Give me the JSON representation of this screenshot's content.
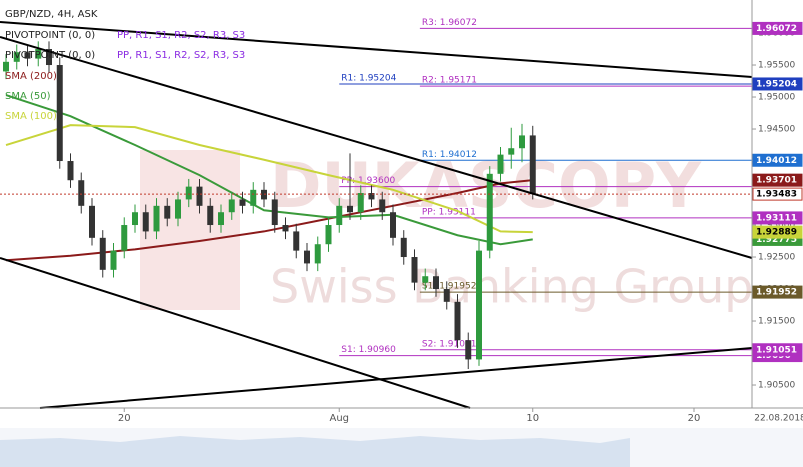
{
  "chart_data": {
    "type": "candlestick",
    "title": "GBP/NZD, 4H, ASK",
    "indicator_lines": [
      "PIVOTPOINT (0, 0)",
      "PIVOTPOINT (0, 0)"
    ],
    "indicator_items": [
      "PP, R1, S1, R2, S2, R3, S3",
      "PP, R1, S1, R2, S2, R3, S3"
    ],
    "watermark": [
      "DUKASCOPY",
      "Swiss Banking Group"
    ],
    "date_label": "22.08.2018",
    "up_color": "#2e9a3e",
    "down_color": "#333333",
    "ylim": [
      1.90141,
      1.96516
    ],
    "yticks": [
      {
        "value": 1.905,
        "label": "1.90500"
      },
      {
        "value": 1.91,
        "label": "1.91000"
      },
      {
        "value": 1.915,
        "label": "1.91500"
      },
      {
        "value": 1.92,
        "label": "1.92000"
      },
      {
        "value": 1.925,
        "label": "1.92500"
      },
      {
        "value": 1.93,
        "label": "1.93000"
      },
      {
        "value": 1.935,
        "label": "1.93500"
      },
      {
        "value": 1.94,
        "label": "1.94000"
      },
      {
        "value": 1.945,
        "label": "1.94500"
      },
      {
        "value": 1.95,
        "label": "1.95000"
      },
      {
        "value": 1.955,
        "label": "1.95500"
      },
      {
        "value": 1.96,
        "label": "1.96000"
      }
    ],
    "grid": false,
    "xlabels": [
      {
        "value": 11,
        "label": "20"
      },
      {
        "value": 31,
        "label": "Aug"
      },
      {
        "value": 49,
        "label": "10"
      },
      {
        "value": 64,
        "label": "20"
      }
    ],
    "candles": [
      [
        1.954,
        1.9567,
        1.9528,
        1.9555
      ],
      [
        1.9555,
        1.9582,
        1.9543,
        1.957
      ],
      [
        1.957,
        1.9582,
        1.9548,
        1.956
      ],
      [
        1.956,
        1.9587,
        1.9548,
        1.9575
      ],
      [
        1.9575,
        1.9587,
        1.9538,
        1.955
      ],
      [
        1.955,
        1.9562,
        1.9388,
        1.94
      ],
      [
        1.94,
        1.9412,
        1.9358,
        1.937
      ],
      [
        1.937,
        1.9382,
        1.9318,
        1.933
      ],
      [
        1.933,
        1.9342,
        1.9268,
        1.928
      ],
      [
        1.928,
        1.9292,
        1.9218,
        1.923
      ],
      [
        1.923,
        1.9272,
        1.9218,
        1.926
      ],
      [
        1.926,
        1.9312,
        1.9248,
        1.93
      ],
      [
        1.93,
        1.9332,
        1.9288,
        1.932
      ],
      [
        1.932,
        1.9332,
        1.9278,
        1.929
      ],
      [
        1.929,
        1.9342,
        1.9278,
        1.933
      ],
      [
        1.933,
        1.9342,
        1.9298,
        1.931
      ],
      [
        1.931,
        1.9352,
        1.9298,
        1.934
      ],
      [
        1.934,
        1.9372,
        1.9328,
        1.936
      ],
      [
        1.936,
        1.9372,
        1.9318,
        1.933
      ],
      [
        1.933,
        1.9342,
        1.9288,
        1.93
      ],
      [
        1.93,
        1.9332,
        1.9288,
        1.932
      ],
      [
        1.932,
        1.9352,
        1.9308,
        1.934
      ],
      [
        1.934,
        1.9352,
        1.9318,
        1.933
      ],
      [
        1.933,
        1.9367,
        1.9318,
        1.9355
      ],
      [
        1.9355,
        1.9367,
        1.9328,
        1.934
      ],
      [
        1.934,
        1.9352,
        1.9288,
        1.93
      ],
      [
        1.93,
        1.9312,
        1.9278,
        1.929
      ],
      [
        1.929,
        1.9302,
        1.9248,
        1.926
      ],
      [
        1.926,
        1.9272,
        1.9228,
        1.924
      ],
      [
        1.924,
        1.9282,
        1.9228,
        1.927
      ],
      [
        1.927,
        1.9312,
        1.9258,
        1.93
      ],
      [
        1.93,
        1.9342,
        1.9288,
        1.933
      ],
      [
        1.933,
        1.9412,
        1.9308,
        1.932
      ],
      [
        1.932,
        1.9362,
        1.9308,
        1.935
      ],
      [
        1.935,
        1.9362,
        1.9328,
        1.934
      ],
      [
        1.934,
        1.9352,
        1.9308,
        1.932
      ],
      [
        1.932,
        1.9332,
        1.9268,
        1.928
      ],
      [
        1.928,
        1.9292,
        1.9238,
        1.925
      ],
      [
        1.925,
        1.9262,
        1.9198,
        1.921
      ],
      [
        1.921,
        1.9232,
        1.9198,
        1.922
      ],
      [
        1.922,
        1.9232,
        1.9188,
        1.92
      ],
      [
        1.92,
        1.9212,
        1.9168,
        1.918
      ],
      [
        1.918,
        1.9192,
        1.9108,
        1.912
      ],
      [
        1.912,
        1.9132,
        1.9075,
        1.909
      ],
      [
        1.909,
        1.9275,
        1.908,
        1.926
      ],
      [
        1.926,
        1.9392,
        1.9248,
        1.938
      ],
      [
        1.938,
        1.9422,
        1.9368,
        1.941
      ],
      [
        1.941,
        1.9452,
        1.9388,
        1.942
      ],
      [
        1.942,
        1.9458,
        1.9398,
        1.944
      ],
      [
        1.944,
        1.9455,
        1.934,
        1.93483
      ]
    ],
    "current_price_color": "#c0392b",
    "sma": [
      {
        "name": "SMA (200)",
        "color": "#8b1a1a",
        "x": [
          0,
          6,
          12,
          18,
          24,
          30,
          36,
          42,
          46,
          49
        ],
        "values": [
          1.9245,
          1.9252,
          1.9262,
          1.9275,
          1.929,
          1.931,
          1.933,
          1.935,
          1.9365,
          1.93701
        ]
      },
      {
        "name": "SMA (50)",
        "color": "#3a9a3a",
        "x": [
          0,
          6,
          12,
          18,
          24,
          30,
          36,
          42,
          46,
          49
        ],
        "values": [
          1.9503,
          1.947,
          1.9425,
          1.9378,
          1.9323,
          1.9312,
          1.9316,
          1.9284,
          1.927,
          1.92775
        ]
      },
      {
        "name": "SMA (100)",
        "color": "#c8d43a",
        "x": [
          0,
          6,
          12,
          18,
          24,
          30,
          36,
          42,
          46,
          49
        ],
        "values": [
          1.9425,
          1.9456,
          1.9453,
          1.9425,
          1.9402,
          1.9378,
          1.9355,
          1.9322,
          1.929,
          1.92889
        ]
      }
    ],
    "pivot_sets": [
      {
        "start": 31,
        "levels": [
          {
            "label": "R1: 1.95204",
            "value": 1.95204,
            "color": "#1f3fbf",
            "axis_label": true
          },
          {
            "label": "PP: 1.93600",
            "value": 1.936,
            "color": "#b030c0",
            "axis_label": false
          },
          {
            "label": "S1: 1.90960",
            "value": 1.9096,
            "color": "#b030c0",
            "axis_label": true
          }
        ]
      },
      {
        "start": 38.5,
        "levels": [
          {
            "label": "R3: 1.96072",
            "value": 1.96072,
            "color": "#b030c0",
            "axis_label": true
          },
          {
            "label": "R2: 1.95171",
            "value": 1.95171,
            "color": "#b030c0",
            "axis_label": false
          },
          {
            "label": "R1: 1.94012",
            "value": 1.94012,
            "color": "#1f6fd0",
            "axis_label": true
          },
          {
            "label": "PP: 1.93111",
            "value": 1.93111,
            "color": "#b030c0",
            "axis_label": true
          },
          {
            "label": "S1: 1.91952",
            "value": 1.91952,
            "color": "#6b5a2a",
            "axis_label": true
          },
          {
            "label": "S2: 1.91051",
            "value": 1.91051,
            "color": "#b030c0",
            "axis_label": true
          }
        ]
      }
    ]
  }
}
